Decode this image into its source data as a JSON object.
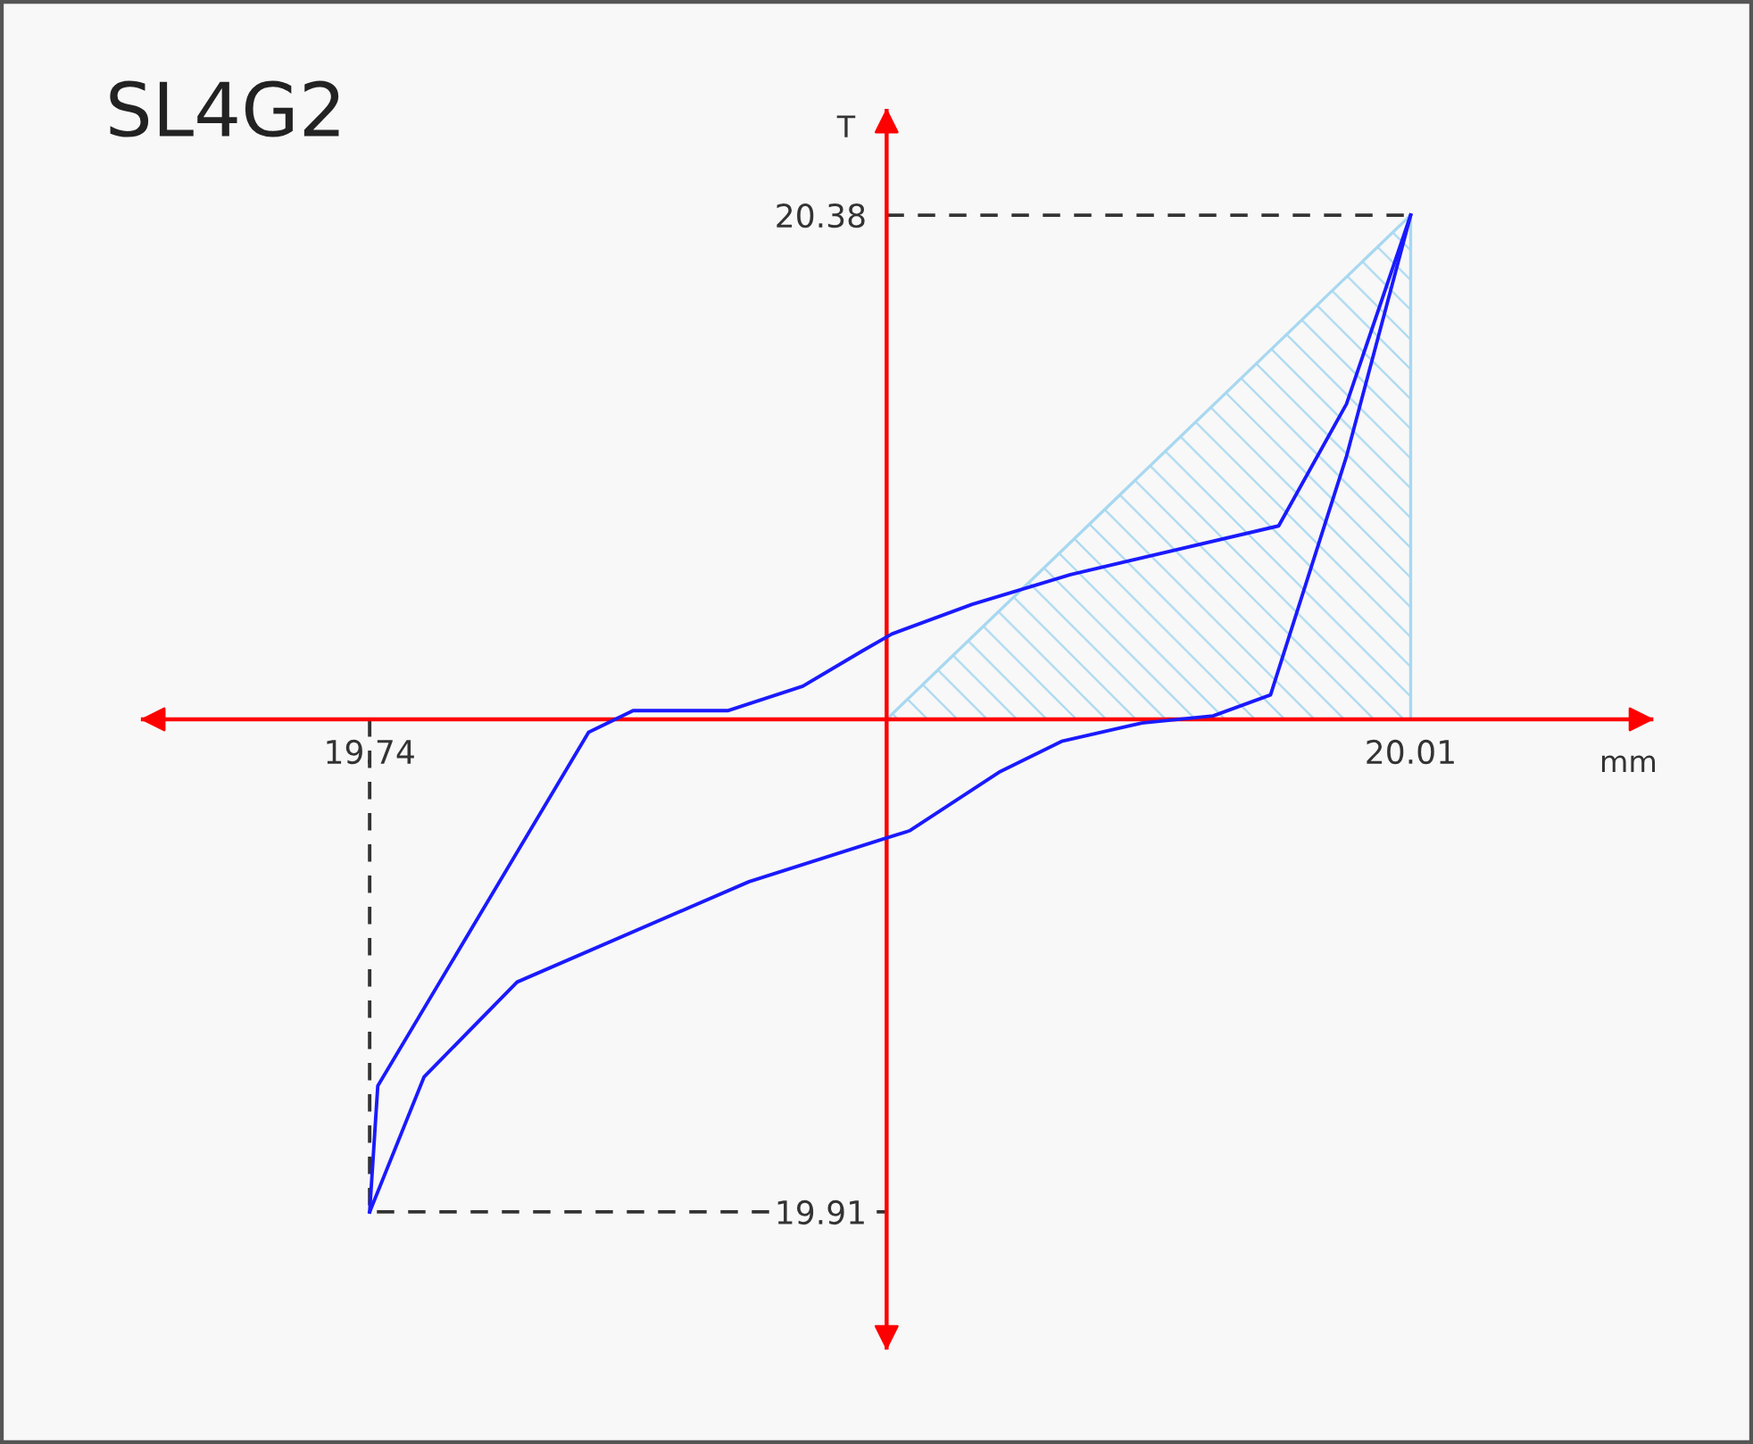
{
  "chart_data": {
    "type": "line",
    "title": "SL4G2",
    "xlabel": "mm",
    "ylabel": "T",
    "series": [
      {
        "type": "area",
        "color": "#a8d8f0",
        "x": [
          0,
          20.01
        ],
        "values": [
          0,
          20.38
        ]
      },
      {
        "type": "line",
        "color": "#333333",
        "line_style": "dashed",
        "x": [
          -19.74,
          -19.74,
          0
        ],
        "values": [
          0,
          -19.91,
          -19.91
        ]
      },
      {
        "type": "line",
        "color": "#333333",
        "line_style": "dashed",
        "x": [
          0,
          20.01
        ],
        "values": [
          20.38,
          20.38
        ]
      },
      {
        "color": "#1a1aff",
        "x": [
          -19.74,
          -19.43,
          -11.38,
          -9.68,
          -6.07,
          -3.2,
          -0.95,
          0.2,
          3.27,
          7.02,
          14.97,
          17.56,
          20.01
        ],
        "values": [
          -19.91,
          -14.82,
          -0.52,
          0.35,
          0.35,
          1.34,
          2.75,
          3.45,
          4.65,
          5.85,
          7.82,
          12.75,
          20.38
        ]
      },
      {
        "color": "#1a1aff",
        "x": [
          -19.74,
          -17.66,
          -14.11,
          -5.25,
          0,
          0.89,
          4.29,
          6.68,
          9.75,
          12.47,
          14.66,
          17.56,
          20.01
        ],
        "values": [
          -19.91,
          -14.45,
          -10.62,
          -6.56,
          -4.79,
          -4.5,
          -2.14,
          -0.89,
          -0.15,
          0.14,
          0.99,
          10.63,
          20.38
        ]
      }
    ],
    "xlim": [
      -28.4,
      29.2
    ],
    "ylim": [
      -25.4,
      24.6
    ],
    "xticks": [
      {
        "value": -19.74,
        "label": "19.74"
      },
      {
        "value": 20.01,
        "label": "20.01"
      }
    ],
    "yticks": [
      {
        "value": 20.38,
        "label": "20.38"
      },
      {
        "value": -19.91,
        "label": "19.91"
      }
    ],
    "grid": false,
    "legend": false,
    "marker": "none",
    "line_style": "solid"
  }
}
